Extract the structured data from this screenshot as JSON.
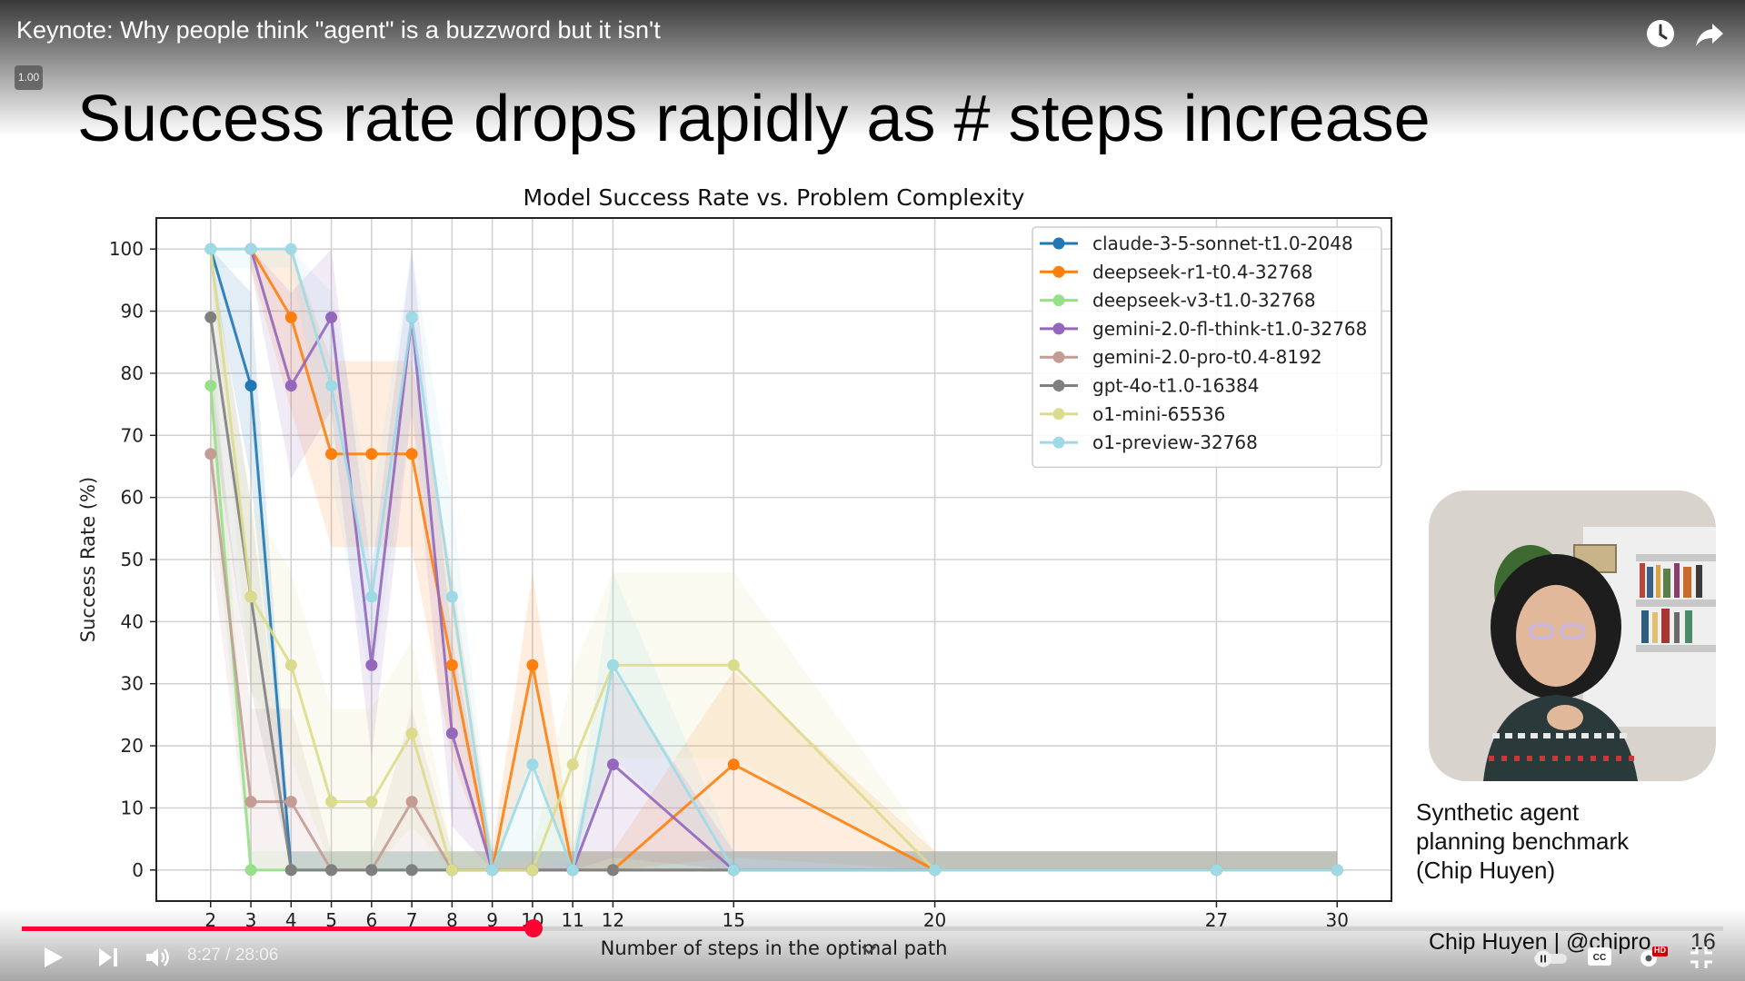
{
  "video": {
    "title": "Keynote: Why people think \"agent\" is a buzzword but it isn't",
    "speed_badge": "1.00",
    "icons": [
      "watch-later-icon",
      "share-icon"
    ]
  },
  "slide": {
    "title": "Success rate drops rapidly as # steps increase",
    "caption_lines": [
      "Synthetic agent",
      "planning benchmark",
      "(Chip Huyen)"
    ],
    "credit": "Chip Huyen | @chipro",
    "slide_number": "16"
  },
  "chart_data": {
    "type": "line",
    "title": "Model Success Rate vs. Problem Complexity",
    "xlabel": "Number of steps in the optimal path",
    "ylabel": "Success Rate (%)",
    "x_ticks": [
      2,
      3,
      4,
      5,
      6,
      7,
      8,
      9,
      10,
      11,
      12,
      15,
      20,
      27,
      30
    ],
    "y_ticks": [
      0,
      10,
      20,
      30,
      40,
      50,
      60,
      70,
      80,
      90,
      100
    ],
    "ylim": [
      -5,
      105
    ],
    "grid": true,
    "legend_position": "top-right",
    "confidence_bands": true,
    "series": [
      {
        "name": "claude-3-5-sonnet-t1.0-2048",
        "color": "#1f77b4",
        "points": [
          [
            2,
            100
          ],
          [
            3,
            78
          ],
          [
            4,
            0
          ],
          [
            5,
            0
          ],
          [
            6,
            0
          ],
          [
            7,
            0
          ],
          [
            8,
            0
          ],
          [
            9,
            0
          ],
          [
            10,
            0
          ],
          [
            11,
            0
          ],
          [
            12,
            0
          ],
          [
            15,
            0
          ],
          [
            20,
            0
          ],
          [
            27,
            0
          ],
          [
            30,
            0
          ]
        ]
      },
      {
        "name": "deepseek-r1-t0.4-32768",
        "color": "#ff7f0e",
        "points": [
          [
            3,
            100
          ],
          [
            4,
            89
          ],
          [
            5,
            67
          ],
          [
            6,
            67
          ],
          [
            7,
            67
          ],
          [
            8,
            33
          ],
          [
            9,
            0
          ],
          [
            10,
            33
          ],
          [
            11,
            0
          ],
          [
            12,
            0
          ],
          [
            15,
            17
          ],
          [
            20,
            0
          ],
          [
            27,
            0
          ],
          [
            30,
            0
          ]
        ]
      },
      {
        "name": "deepseek-v3-t1.0-32768",
        "color": "#98df8a",
        "points": [
          [
            2,
            78
          ],
          [
            3,
            0
          ],
          [
            4,
            0
          ],
          [
            5,
            0
          ],
          [
            6,
            0
          ],
          [
            7,
            0
          ],
          [
            8,
            0
          ],
          [
            9,
            0
          ],
          [
            10,
            0
          ],
          [
            11,
            0
          ],
          [
            12,
            0
          ],
          [
            15,
            0
          ],
          [
            20,
            0
          ],
          [
            27,
            0
          ],
          [
            30,
            0
          ]
        ]
      },
      {
        "name": "gemini-2.0-fl-think-t1.0-32768",
        "color": "#9467bd",
        "points": [
          [
            3,
            100
          ],
          [
            4,
            78
          ],
          [
            5,
            89
          ],
          [
            6,
            33
          ],
          [
            7,
            89
          ],
          [
            8,
            22
          ],
          [
            9,
            0
          ],
          [
            10,
            0
          ],
          [
            11,
            0
          ],
          [
            12,
            17
          ],
          [
            15,
            0
          ],
          [
            20,
            0
          ],
          [
            27,
            0
          ],
          [
            30,
            0
          ]
        ]
      },
      {
        "name": "gemini-2.0-pro-t0.4-8192",
        "color": "#c49c94",
        "points": [
          [
            2,
            67
          ],
          [
            3,
            11
          ],
          [
            4,
            11
          ],
          [
            5,
            0
          ],
          [
            6,
            0
          ],
          [
            7,
            11
          ],
          [
            8,
            0
          ],
          [
            9,
            0
          ],
          [
            10,
            0
          ],
          [
            11,
            0
          ],
          [
            12,
            0
          ],
          [
            15,
            0
          ],
          [
            20,
            0
          ],
          [
            27,
            0
          ],
          [
            30,
            0
          ]
        ]
      },
      {
        "name": "gpt-4o-t1.0-16384",
        "color": "#7f7f7f",
        "points": [
          [
            2,
            89
          ],
          [
            3,
            44
          ],
          [
            4,
            0
          ],
          [
            5,
            0
          ],
          [
            6,
            0
          ],
          [
            7,
            0
          ],
          [
            8,
            0
          ],
          [
            9,
            0
          ],
          [
            10,
            0
          ],
          [
            11,
            0
          ],
          [
            12,
            0
          ],
          [
            15,
            0
          ],
          [
            20,
            0
          ],
          [
            27,
            0
          ],
          [
            30,
            0
          ]
        ]
      },
      {
        "name": "o1-mini-65536",
        "color": "#dbdb8d",
        "points": [
          [
            2,
            100
          ],
          [
            3,
            44
          ],
          [
            4,
            33
          ],
          [
            5,
            11
          ],
          [
            6,
            11
          ],
          [
            7,
            22
          ],
          [
            8,
            0
          ],
          [
            9,
            0
          ],
          [
            10,
            0
          ],
          [
            11,
            17
          ],
          [
            12,
            33
          ],
          [
            15,
            33
          ],
          [
            20,
            0
          ],
          [
            27,
            0
          ],
          [
            30,
            0
          ]
        ]
      },
      {
        "name": "o1-preview-32768",
        "color": "#9edae5",
        "points": [
          [
            2,
            100
          ],
          [
            3,
            100
          ],
          [
            4,
            100
          ],
          [
            5,
            78
          ],
          [
            6,
            44
          ],
          [
            7,
            89
          ],
          [
            8,
            44
          ],
          [
            9,
            0
          ],
          [
            10,
            17
          ],
          [
            11,
            0
          ],
          [
            12,
            33
          ],
          [
            15,
            0
          ],
          [
            20,
            0
          ],
          [
            27,
            0
          ],
          [
            30,
            0
          ]
        ]
      }
    ]
  },
  "player": {
    "time": "8:27 / 28:06",
    "progress": 0.301,
    "icons": [
      "play-icon",
      "next-icon",
      "volume-icon",
      "autoplay-toggle-icon",
      "captions-icon",
      "settings-icon",
      "exit-fullscreen-icon"
    ],
    "hd_badge": "HD",
    "accent_color": "#ff0033"
  }
}
